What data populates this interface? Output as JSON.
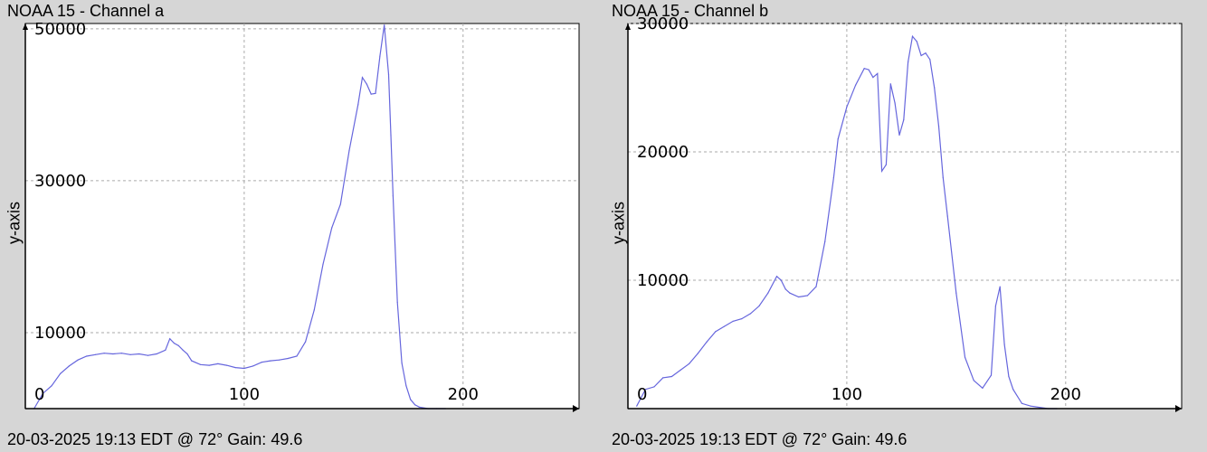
{
  "charts": [
    {
      "title": "NOAA 15 - Channel a",
      "footer": "20-03-2025 19:13 EDT @ 72° Gain: 49.6"
    },
    {
      "title": "NOAA 15 - Channel b",
      "footer": "20-03-2025 19:13 EDT @ 72° Gain: 49.6"
    }
  ],
  "colors": {
    "line": "#6666dd",
    "grid": "#aaaaaa",
    "plot_bg": "#ffffff",
    "page_bg": "#d6d6d6"
  },
  "chart_data": [
    {
      "type": "line",
      "title": "NOAA 15 - Channel a",
      "xlabel": "",
      "ylabel": "y-axis",
      "xlim": [
        0,
        253
      ],
      "ylim": [
        0,
        50700
      ],
      "xticks": [
        0,
        100,
        200
      ],
      "yticks": [
        0,
        10000,
        30000,
        50000
      ],
      "ytick_labels": [
        "0",
        "10000",
        "30000",
        "50000"
      ],
      "xtick_labels": [
        "0",
        "100",
        "200"
      ],
      "grid": true,
      "series": [
        {
          "x": [
            4,
            8,
            12,
            16,
            20,
            24,
            28,
            32,
            36,
            40,
            44,
            48,
            52,
            56,
            60,
            64,
            66,
            68,
            70,
            72,
            74,
            76,
            80,
            84,
            88,
            92,
            96,
            100,
            104,
            108,
            112,
            116,
            120,
            124,
            128,
            132,
            136,
            140,
            144,
            148,
            152,
            154,
            156,
            158,
            160,
            162,
            164,
            166,
            167,
            168,
            170,
            172,
            174,
            176,
            178,
            180,
            184,
            188,
            192
          ],
          "y": [
            0,
            2000,
            3000,
            4600,
            5600,
            6400,
            6900,
            7100,
            7300,
            7200,
            7300,
            7100,
            7200,
            7000,
            7200,
            7700,
            9200,
            8600,
            8300,
            7700,
            7200,
            6300,
            5800,
            5700,
            5900,
            5700,
            5400,
            5300,
            5600,
            6100,
            6300,
            6400,
            6600,
            6900,
            8800,
            13000,
            19000,
            23800,
            26900,
            34000,
            40000,
            43600,
            42700,
            41400,
            41500,
            46400,
            50500,
            44000,
            36000,
            28000,
            14000,
            6000,
            3000,
            1200,
            500,
            200,
            0,
            0,
            0
          ]
        }
      ]
    },
    {
      "type": "line",
      "title": "NOAA 15 - Channel b",
      "xlabel": "",
      "ylabel": "y-axis",
      "xlim": [
        0,
        253
      ],
      "ylim": [
        0,
        30000
      ],
      "xticks": [
        0,
        100,
        200
      ],
      "yticks": [
        0,
        10000,
        20000,
        30000
      ],
      "ytick_labels": [
        "0",
        "10000",
        "20000",
        "30000"
      ],
      "xtick_labels": [
        "0",
        "100",
        "200"
      ],
      "grid": true,
      "series": [
        {
          "x": [
            4,
            8,
            12,
            16,
            20,
            24,
            28,
            32,
            36,
            40,
            44,
            48,
            52,
            56,
            60,
            64,
            68,
            70,
            72,
            74,
            78,
            82,
            86,
            90,
            94,
            96,
            100,
            104,
            108,
            110,
            112,
            114,
            116,
            118,
            120,
            122,
            124,
            126,
            128,
            130,
            132,
            134,
            136,
            138,
            140,
            142,
            144,
            146,
            150,
            154,
            158,
            162,
            166,
            168,
            170,
            172,
            174,
            176,
            180,
            184,
            188,
            192,
            196
          ],
          "y": [
            200,
            1500,
            1700,
            2400,
            2500,
            3000,
            3500,
            4300,
            5200,
            6000,
            6400,
            6800,
            7000,
            7400,
            8000,
            9000,
            10300,
            10000,
            9300,
            9000,
            8700,
            8800,
            9500,
            13000,
            18000,
            21000,
            23500,
            25200,
            26500,
            26400,
            25800,
            26100,
            18500,
            19000,
            25300,
            23800,
            21300,
            22500,
            27000,
            29000,
            28600,
            27500,
            27700,
            27200,
            25000,
            22000,
            18000,
            15000,
            9000,
            4000,
            2200,
            1600,
            2600,
            8000,
            9500,
            5000,
            2500,
            1500,
            400,
            200,
            100,
            0,
            0
          ]
        }
      ]
    }
  ]
}
